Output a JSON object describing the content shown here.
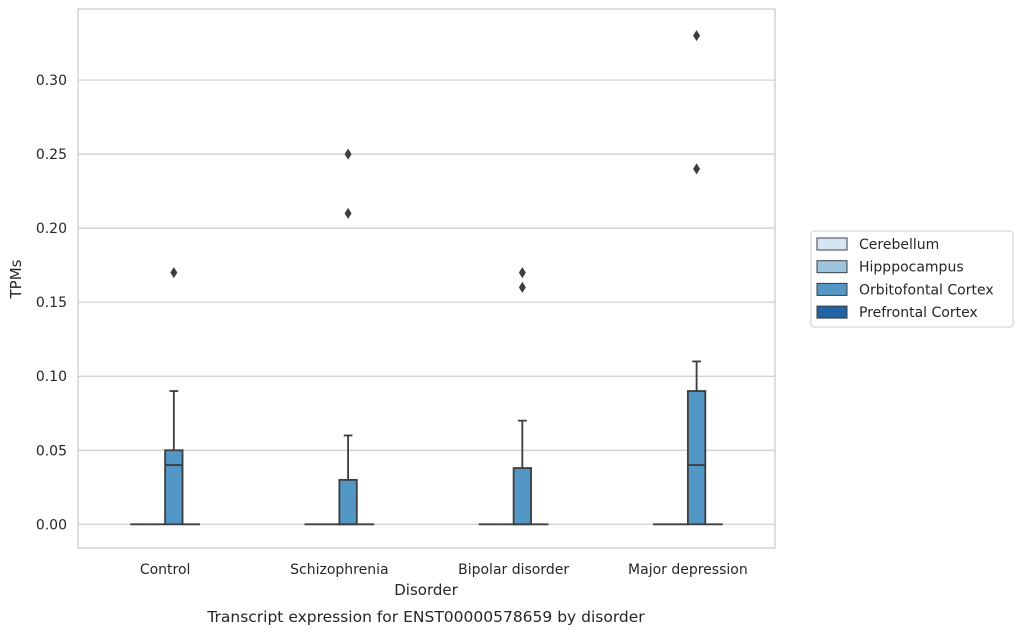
{
  "chart_data": {
    "type": "box",
    "caption": "Transcript expression for ENST00000578659 by disorder",
    "xlabel": "Disorder",
    "ylabel": "TPMs",
    "ylim": [
      -0.016,
      0.348
    ],
    "yticks": [
      0.0,
      0.05,
      0.1,
      0.15,
      0.2,
      0.25,
      0.3
    ],
    "ytick_labels": [
      "0.00",
      "0.05",
      "0.10",
      "0.15",
      "0.20",
      "0.25",
      "0.30"
    ],
    "grid": "horizontal",
    "legend_position": "right",
    "categories": [
      "Control",
      "Schizophrenia",
      "Bipolar disorder",
      "Major depression"
    ],
    "series": [
      {
        "name": "Cerebellum",
        "color": "#d6e5f4",
        "boxes": [
          {
            "min": 0,
            "q1": 0,
            "median": 0,
            "q3": 0,
            "max": 0,
            "outliers": []
          },
          {
            "min": 0,
            "q1": 0,
            "median": 0,
            "q3": 0,
            "max": 0,
            "outliers": []
          },
          {
            "min": 0,
            "q1": 0,
            "median": 0,
            "q3": 0,
            "max": 0,
            "outliers": []
          },
          {
            "min": 0,
            "q1": 0,
            "median": 0,
            "q3": 0,
            "max": 0,
            "outliers": []
          }
        ]
      },
      {
        "name": "Hipppocampus",
        "color": "#9dc5e0",
        "boxes": [
          {
            "min": 0,
            "q1": 0,
            "median": 0,
            "q3": 0,
            "max": 0,
            "outliers": []
          },
          {
            "min": 0,
            "q1": 0,
            "median": 0,
            "q3": 0,
            "max": 0,
            "outliers": []
          },
          {
            "min": 0,
            "q1": 0,
            "median": 0,
            "q3": 0,
            "max": 0,
            "outliers": []
          },
          {
            "min": 0,
            "q1": 0,
            "median": 0,
            "q3": 0,
            "max": 0,
            "outliers": []
          }
        ]
      },
      {
        "name": "Orbitofontal Cortex",
        "color": "#5297c6",
        "boxes": [
          {
            "min": 0,
            "q1": 0,
            "median": 0.04,
            "q3": 0.05,
            "max": 0.09,
            "outliers": [
              0.17
            ]
          },
          {
            "min": 0,
            "q1": 0,
            "median": 0,
            "q3": 0.03,
            "max": 0.06,
            "outliers": [
              0.21,
              0.25
            ]
          },
          {
            "min": 0,
            "q1": 0,
            "median": 0,
            "q3": 0.038,
            "max": 0.07,
            "outliers": [
              0.16,
              0.17
            ]
          },
          {
            "min": 0,
            "q1": 0,
            "median": 0.04,
            "q3": 0.09,
            "max": 0.11,
            "outliers": [
              0.24,
              0.33
            ]
          }
        ]
      },
      {
        "name": "Prefrontal Cortex",
        "color": "#2265a6",
        "boxes": [
          {
            "min": 0,
            "q1": 0,
            "median": 0,
            "q3": 0,
            "max": 0,
            "outliers": []
          },
          {
            "min": 0,
            "q1": 0,
            "median": 0,
            "q3": 0,
            "max": 0,
            "outliers": []
          },
          {
            "min": 0,
            "q1": 0,
            "median": 0,
            "q3": 0,
            "max": 0,
            "outliers": []
          },
          {
            "min": 0,
            "q1": 0,
            "median": 0,
            "q3": 0,
            "max": 0,
            "outliers": []
          }
        ]
      }
    ],
    "edge_color": "#3d3d3d",
    "grid_color": "#cccccc",
    "frame_color": "#cccccc"
  }
}
